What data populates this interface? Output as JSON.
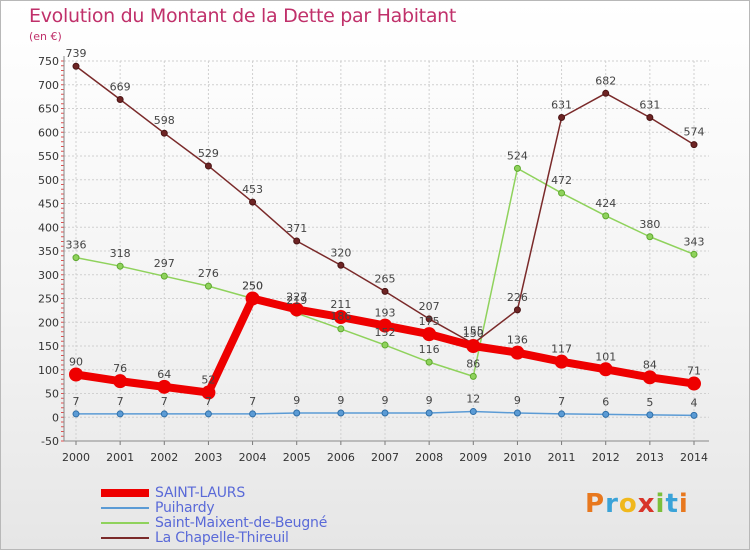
{
  "title": "Evolution du Montant de la Dette par Habitant",
  "unit": "(en €)",
  "logo": {
    "text": "Proxiti",
    "letters": [
      "P",
      "r",
      "o",
      "x",
      "i",
      "t",
      "i"
    ],
    "colors": [
      "#e8781e",
      "#3aa3d8",
      "#f0b81c",
      "#d8342a",
      "#7bbf3a",
      "#3aa3d8",
      "#e8781e"
    ]
  },
  "chart_data": {
    "type": "line",
    "x": [
      2000,
      2001,
      2002,
      2003,
      2004,
      2005,
      2006,
      2007,
      2008,
      2009,
      2010,
      2011,
      2012,
      2013,
      2014
    ],
    "ylim": [
      -50,
      750
    ],
    "yticks": [
      -50,
      0,
      50,
      100,
      150,
      200,
      250,
      300,
      350,
      400,
      450,
      500,
      550,
      600,
      650,
      700,
      750
    ],
    "grid": true,
    "legend_position": "bottom-left",
    "series": [
      {
        "name": "SAINT-LAURS",
        "color": "#ee0000",
        "values": [
          90,
          76,
          64,
          52,
          250,
          227,
          211,
          193,
          175,
          150,
          136,
          117,
          101,
          84,
          71
        ]
      },
      {
        "name": "Puihardy",
        "color": "#5b9bd5",
        "values": [
          7,
          7,
          7,
          7,
          7,
          9,
          9,
          9,
          9,
          12,
          9,
          7,
          6,
          5,
          4
        ]
      },
      {
        "name": "Saint-Maixent-de-Beugné",
        "color": "#8fd25c",
        "values": [
          336,
          318,
          297,
          276,
          250,
          219,
          186,
          152,
          116,
          86,
          524,
          472,
          424,
          380,
          343
        ]
      },
      {
        "name": "La Chapelle-Thireuil",
        "color": "#7a2a2a",
        "values": [
          739,
          669,
          598,
          529,
          453,
          371,
          320,
          265,
          207,
          155,
          226,
          631,
          682,
          631,
          574
        ]
      }
    ]
  }
}
